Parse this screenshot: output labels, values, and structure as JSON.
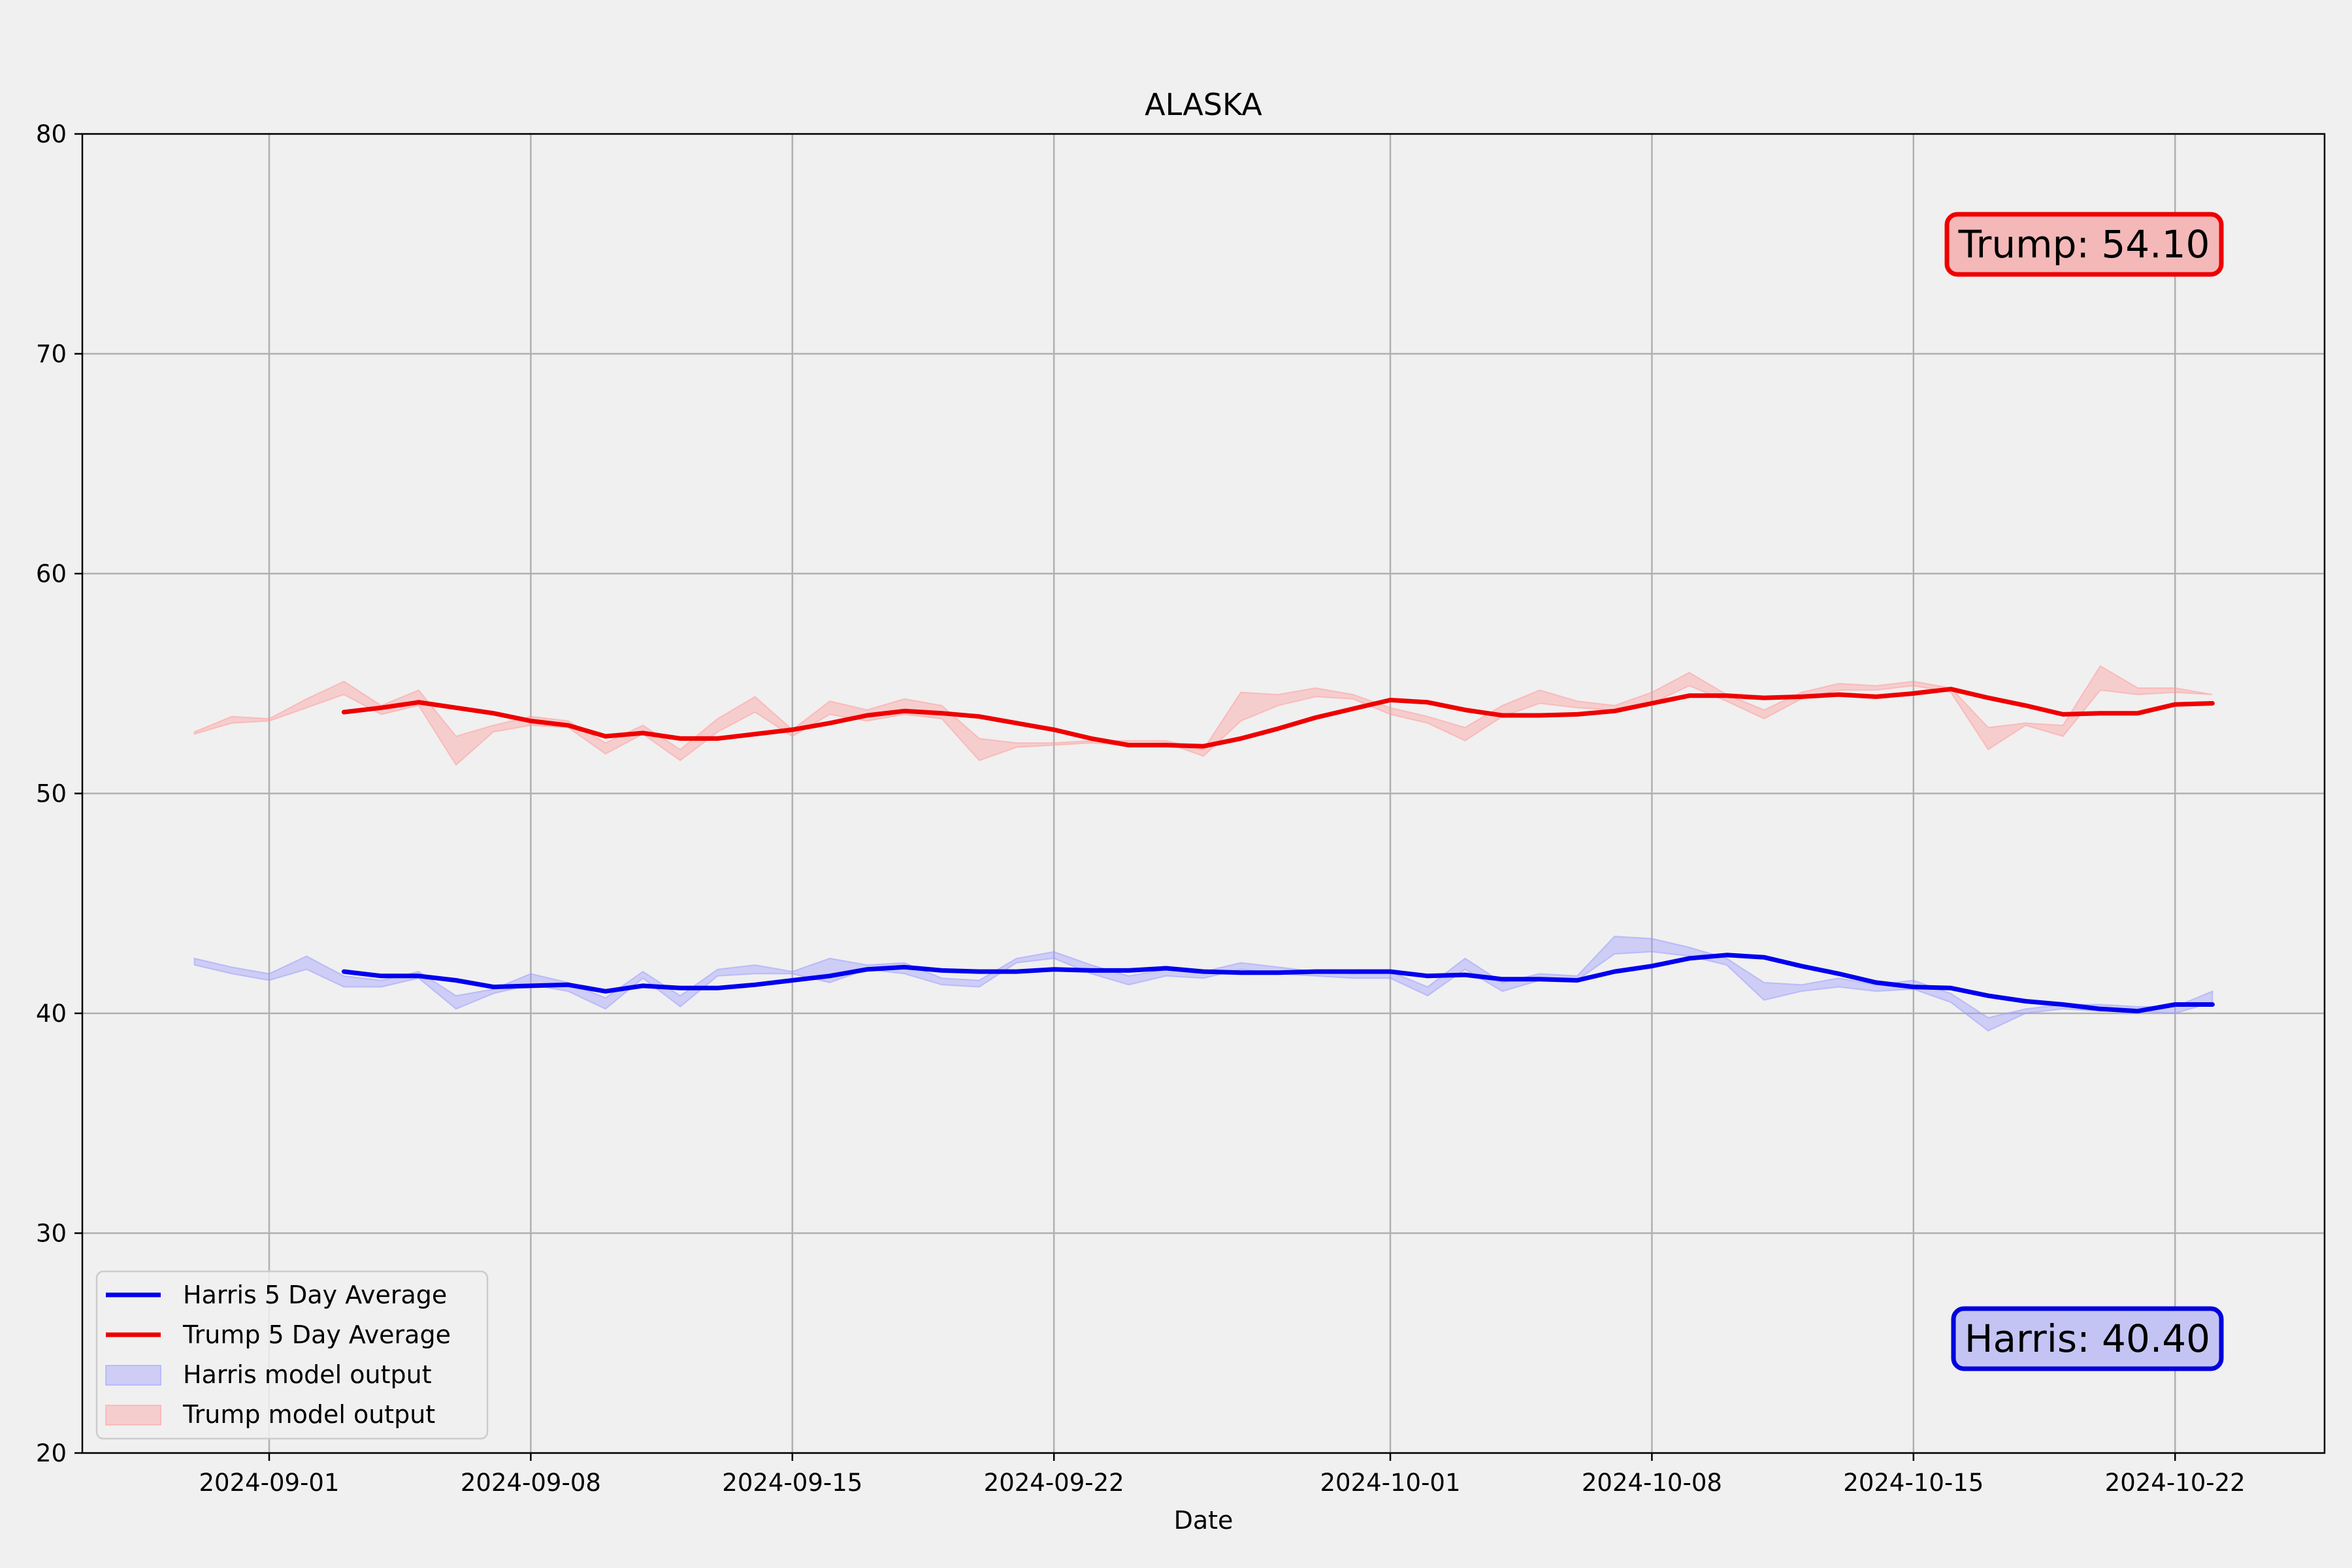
{
  "chart_data": {
    "type": "line",
    "title": "ALASKA",
    "xlabel": "Date",
    "ylabel": "",
    "x_range": [
      "2024-08-27",
      "2024-10-26"
    ],
    "ylim": [
      20,
      80
    ],
    "yticks": [
      20,
      30,
      40,
      50,
      60,
      70,
      80
    ],
    "xticks": [
      "2024-09-01",
      "2024-09-08",
      "2024-09-15",
      "2024-09-22",
      "2024-10-01",
      "2024-10-08",
      "2024-10-15",
      "2024-10-22"
    ],
    "grid": true,
    "legend_position": "lower-left",
    "band_dates": [
      "2024-08-30",
      "2024-08-31",
      "2024-09-01",
      "2024-09-02",
      "2024-09-03",
      "2024-09-04",
      "2024-09-05",
      "2024-09-06",
      "2024-09-07",
      "2024-09-08",
      "2024-09-09",
      "2024-09-10",
      "2024-09-11",
      "2024-09-12",
      "2024-09-13",
      "2024-09-14",
      "2024-09-15",
      "2024-09-16",
      "2024-09-17",
      "2024-09-18",
      "2024-09-19",
      "2024-09-20",
      "2024-09-21",
      "2024-09-22",
      "2024-09-23",
      "2024-09-24",
      "2024-09-25",
      "2024-09-26",
      "2024-09-27",
      "2024-09-28",
      "2024-09-29",
      "2024-09-30",
      "2024-10-01",
      "2024-10-02",
      "2024-10-03",
      "2024-10-04",
      "2024-10-05",
      "2024-10-06",
      "2024-10-07",
      "2024-10-08",
      "2024-10-09",
      "2024-10-10",
      "2024-10-11",
      "2024-10-12",
      "2024-10-13",
      "2024-10-14",
      "2024-10-15",
      "2024-10-16",
      "2024-10-17",
      "2024-10-18",
      "2024-10-19",
      "2024-10-20",
      "2024-10-21",
      "2024-10-22",
      "2024-10-23"
    ],
    "avg_dates": [
      "2024-09-03",
      "2024-09-04",
      "2024-09-05",
      "2024-09-06",
      "2024-09-07",
      "2024-09-08",
      "2024-09-09",
      "2024-09-10",
      "2024-09-11",
      "2024-09-12",
      "2024-09-13",
      "2024-09-14",
      "2024-09-15",
      "2024-09-16",
      "2024-09-17",
      "2024-09-18",
      "2024-09-19",
      "2024-09-20",
      "2024-09-21",
      "2024-09-22",
      "2024-09-23",
      "2024-09-24",
      "2024-09-25",
      "2024-09-26",
      "2024-09-27",
      "2024-09-28",
      "2024-09-29",
      "2024-09-30",
      "2024-10-01",
      "2024-10-02",
      "2024-10-03",
      "2024-10-04",
      "2024-10-05",
      "2024-10-06",
      "2024-10-07",
      "2024-10-08",
      "2024-10-09",
      "2024-10-10",
      "2024-10-11",
      "2024-10-12",
      "2024-10-13",
      "2024-10-14",
      "2024-10-15",
      "2024-10-16",
      "2024-10-17",
      "2024-10-18",
      "2024-10-19",
      "2024-10-20",
      "2024-10-21",
      "2024-10-22",
      "2024-10-23"
    ],
    "series": [
      {
        "name": "Harris 5 Day Average",
        "kind": "line",
        "color": "#0000ee",
        "values": [
          41.9,
          41.7,
          41.7,
          41.5,
          41.2,
          41.25,
          41.3,
          41.0,
          41.25,
          41.15,
          41.15,
          41.3,
          41.5,
          41.7,
          42.0,
          42.1,
          41.95,
          41.9,
          41.9,
          42.0,
          41.95,
          41.95,
          42.05,
          41.9,
          41.85,
          41.85,
          41.9,
          41.9,
          41.9,
          41.7,
          41.75,
          41.55,
          41.55,
          41.5,
          41.9,
          42.15,
          42.5,
          42.65,
          42.55,
          42.15,
          41.8,
          41.4,
          41.2,
          41.15,
          40.8,
          40.55,
          40.4,
          40.2,
          40.1,
          40.4,
          40.4
        ]
      },
      {
        "name": "Trump 5 Day Average",
        "kind": "line",
        "color": "#ee0000",
        "values": [
          53.7,
          53.9,
          54.15,
          53.9,
          53.65,
          53.3,
          53.1,
          52.6,
          52.75,
          52.5,
          52.5,
          52.7,
          52.9,
          53.2,
          53.55,
          53.75,
          53.65,
          53.5,
          53.2,
          52.9,
          52.5,
          52.2,
          52.2,
          52.15,
          52.5,
          52.95,
          53.45,
          53.85,
          54.25,
          54.15,
          53.8,
          53.55,
          53.55,
          53.6,
          53.75,
          54.1,
          54.45,
          54.45,
          54.35,
          54.4,
          54.5,
          54.4,
          54.55,
          54.75,
          54.35,
          54.0,
          53.6,
          53.65,
          53.65,
          54.05,
          54.1
        ]
      },
      {
        "name": "Harris model output",
        "kind": "band",
        "color": "#9999ff",
        "low": [
          42.2,
          41.8,
          41.5,
          42.0,
          41.2,
          41.2,
          41.6,
          40.2,
          40.9,
          41.3,
          41.0,
          40.2,
          41.6,
          40.3,
          41.7,
          41.8,
          41.8,
          41.4,
          42.0,
          41.8,
          41.3,
          41.2,
          42.3,
          42.5,
          41.8,
          41.3,
          41.7,
          41.6,
          42.0,
          41.8,
          41.7,
          41.6,
          41.6,
          40.8,
          42.0,
          41.0,
          41.5,
          41.5,
          42.7,
          42.8,
          42.6,
          42.2,
          40.6,
          41.0,
          41.2,
          41.0,
          41.1,
          40.5,
          39.2,
          40.0,
          40.2,
          40.1,
          40.1,
          40.0,
          40.5
        ],
        "high": [
          42.5,
          42.1,
          41.8,
          42.6,
          41.7,
          41.5,
          41.9,
          40.8,
          41.1,
          41.8,
          41.4,
          40.7,
          41.9,
          40.8,
          42.0,
          42.2,
          41.9,
          42.5,
          42.2,
          42.3,
          41.6,
          41.5,
          42.5,
          42.8,
          42.2,
          41.7,
          42.0,
          41.9,
          42.3,
          42.1,
          41.9,
          41.8,
          41.9,
          41.2,
          42.5,
          41.4,
          41.8,
          41.7,
          43.5,
          43.4,
          43.0,
          42.5,
          41.4,
          41.3,
          41.6,
          41.3,
          41.5,
          40.9,
          39.8,
          40.2,
          40.4,
          40.4,
          40.3,
          40.3,
          41.0
        ]
      },
      {
        "name": "Trump model output",
        "kind": "band",
        "color": "#ff9999",
        "low": [
          52.7,
          53.2,
          53.3,
          53.9,
          54.5,
          53.6,
          54.0,
          51.3,
          52.8,
          53.1,
          53.0,
          51.8,
          52.7,
          51.5,
          52.8,
          53.7,
          52.6,
          53.6,
          53.3,
          53.6,
          53.4,
          51.5,
          52.1,
          52.2,
          52.3,
          52.2,
          52.3,
          51.7,
          53.3,
          54.0,
          54.4,
          54.3,
          53.6,
          53.2,
          52.4,
          53.5,
          54.1,
          53.9,
          53.8,
          54.1,
          54.9,
          54.2,
          53.4,
          54.3,
          54.7,
          54.7,
          54.9,
          54.6,
          52.0,
          53.1,
          52.6,
          54.7,
          54.5,
          54.6,
          54.5
        ],
        "high": [
          52.8,
          53.5,
          53.4,
          54.3,
          55.1,
          54.0,
          54.7,
          52.6,
          53.1,
          53.5,
          53.3,
          52.3,
          53.1,
          52.0,
          53.4,
          54.4,
          52.9,
          54.2,
          53.8,
          54.3,
          54.0,
          52.5,
          52.3,
          52.3,
          52.4,
          52.4,
          52.4,
          52.0,
          54.6,
          54.5,
          54.8,
          54.5,
          53.9,
          53.5,
          53.0,
          54.0,
          54.7,
          54.2,
          54.0,
          54.6,
          55.5,
          54.5,
          53.8,
          54.6,
          55.0,
          54.9,
          55.1,
          54.8,
          53.0,
          53.2,
          53.1,
          55.8,
          54.8,
          54.8,
          54.5
        ]
      }
    ],
    "callouts": {
      "trump": {
        "text": "Trump: 54.10",
        "value": 54.1,
        "border": "#ee0000",
        "fill": "#f4b8b8"
      },
      "harris": {
        "text": "Harris: 40.40",
        "value": 40.4,
        "border": "#0000dd",
        "fill": "#c4c4f4"
      }
    },
    "legend": [
      {
        "label": "Harris 5 Day Average",
        "kind": "line",
        "color": "#0000ee"
      },
      {
        "label": "Trump 5 Day Average",
        "kind": "line",
        "color": "#ee0000"
      },
      {
        "label": "Harris model output",
        "kind": "band",
        "color": "#9999ff"
      },
      {
        "label": "Trump model output",
        "kind": "band",
        "color": "#ff9999"
      }
    ]
  }
}
